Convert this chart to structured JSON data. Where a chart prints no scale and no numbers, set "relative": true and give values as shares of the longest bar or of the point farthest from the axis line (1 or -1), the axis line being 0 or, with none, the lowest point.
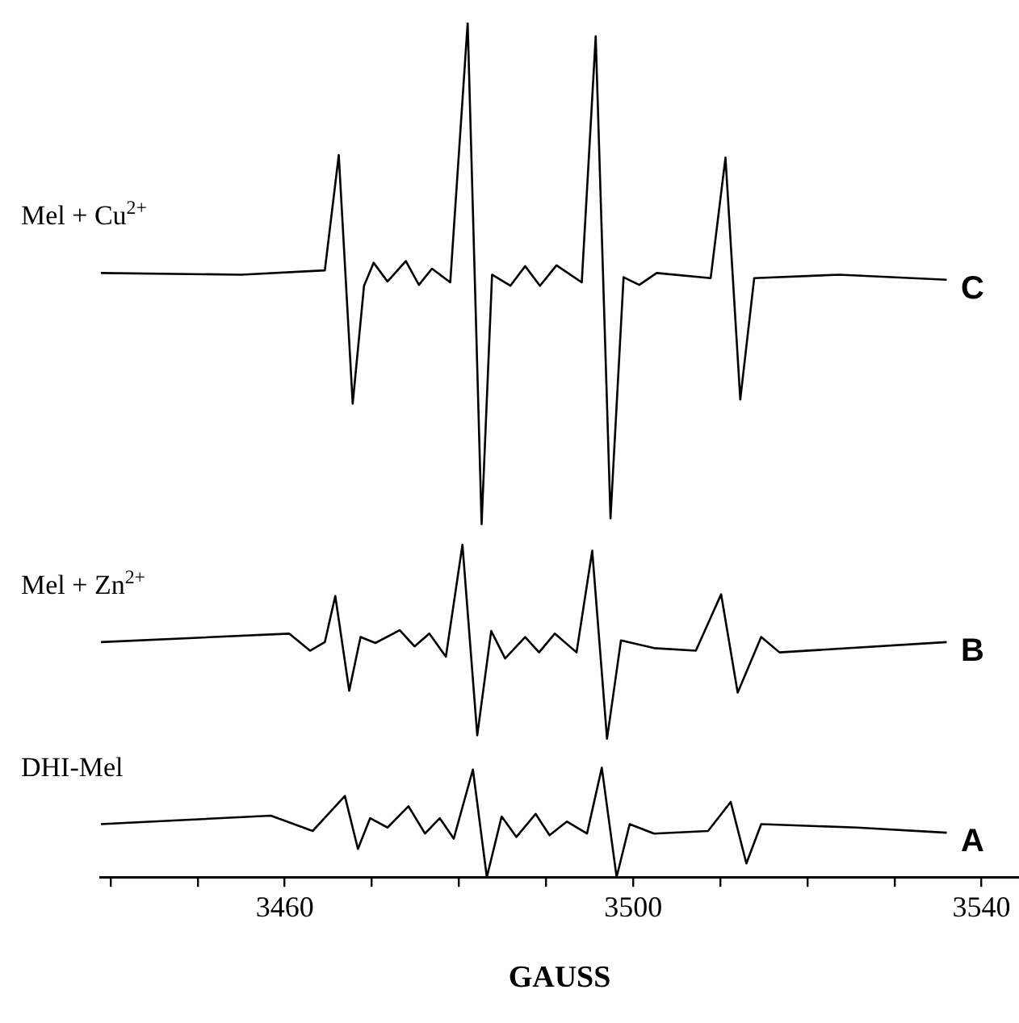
{
  "chart_data": {
    "type": "line",
    "relative": true,
    "xlabel": "GAUSS",
    "legend": false,
    "grid": false,
    "marker": "none",
    "xlim": [
      3438.8,
      3544.3
    ],
    "xticks": [
      {
        "value": 3440,
        "label": null
      },
      {
        "value": 3450,
        "label": null
      },
      3460,
      {
        "value": 3470,
        "label": null
      },
      {
        "value": 3480,
        "label": null
      },
      {
        "value": 3490,
        "label": null
      },
      3500,
      {
        "value": 3510,
        "label": null
      },
      {
        "value": 3520,
        "label": null
      },
      {
        "value": 3530,
        "label": null
      },
      3540
    ],
    "series": [
      {
        "name": "Mel + Cu$^{2+}$",
        "color": "#000000",
        "x": [
          3438.9,
          3455.0,
          3464.6,
          3466.2,
          3467.8,
          3469.1,
          3470.2,
          3471.8,
          3473.9,
          3475.4,
          3476.9,
          3479.0,
          3481.0,
          3482.6,
          3483.8,
          3485.9,
          3487.6,
          3489.3,
          3491.2,
          3494.1,
          3495.7,
          3497.4,
          3498.9,
          3500.7,
          3502.7,
          3508.9,
          3510.6,
          3512.3,
          3513.9,
          3523.7,
          3536.0
        ],
        "values": [
          0.707,
          0.705,
          0.71,
          0.845,
          0.554,
          0.692,
          0.719,
          0.697,
          0.721,
          0.693,
          0.712,
          0.696,
          1.0,
          0.413,
          0.705,
          0.692,
          0.715,
          0.692,
          0.716,
          0.696,
          0.984,
          0.42,
          0.702,
          0.693,
          0.707,
          0.701,
          0.842,
          0.559,
          0.701,
          0.705,
          0.699
        ]
      },
      {
        "name": "Mel + Zn$^{2+}$",
        "color": "#000000",
        "x": [
          3438.9,
          3460.5,
          3462.9,
          3464.6,
          3465.8,
          3467.4,
          3468.7,
          3470.4,
          3473.2,
          3474.9,
          3476.6,
          3478.5,
          3480.4,
          3482.1,
          3483.7,
          3485.3,
          3487.6,
          3489.2,
          3491.0,
          3493.5,
          3495.3,
          3497.0,
          3498.6,
          3502.4,
          3507.2,
          3510.1,
          3512.0,
          3514.7,
          3516.8,
          3536.0
        ],
        "values": [
          0.275,
          0.285,
          0.265,
          0.275,
          0.329,
          0.218,
          0.281,
          0.274,
          0.289,
          0.27,
          0.285,
          0.258,
          0.389,
          0.166,
          0.288,
          0.256,
          0.281,
          0.263,
          0.285,
          0.263,
          0.382,
          0.162,
          0.277,
          0.268,
          0.265,
          0.331,
          0.216,
          0.281,
          0.263,
          0.275
        ]
      },
      {
        "name": "DHI-Mel",
        "color": "#000000",
        "x": [
          3438.9,
          3458.4,
          3463.2,
          3466.9,
          3468.4,
          3469.8,
          3471.8,
          3474.2,
          3476.1,
          3477.8,
          3479.4,
          3481.6,
          3483.2,
          3484.9,
          3486.6,
          3488.8,
          3490.4,
          3492.4,
          3494.7,
          3496.4,
          3498.1,
          3499.6,
          3502.4,
          3508.6,
          3511.2,
          3513.0,
          3514.7,
          3525.7,
          3536.0
        ],
        "values": [
          0.062,
          0.072,
          0.054,
          0.095,
          0.033,
          0.069,
          0.058,
          0.083,
          0.051,
          0.069,
          0.045,
          0.126,
          0.0,
          0.071,
          0.047,
          0.074,
          0.049,
          0.065,
          0.051,
          0.128,
          0.0,
          0.062,
          0.051,
          0.054,
          0.088,
          0.016,
          0.062,
          0.058,
          0.052
        ]
      }
    ],
    "annotations": [
      "C",
      "B",
      "A"
    ]
  }
}
